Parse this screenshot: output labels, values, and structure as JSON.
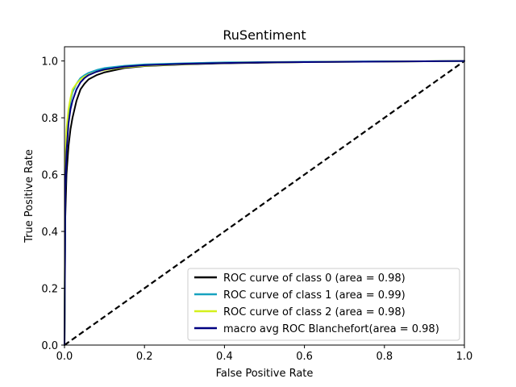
{
  "chart_data": {
    "type": "line",
    "title": "RuSentiment",
    "xlabel": "False Positive Rate",
    "ylabel": "True Positive Rate",
    "xlim": [
      0.0,
      1.0
    ],
    "ylim": [
      0.0,
      1.05
    ],
    "xticks": [
      "0.0",
      "0.2",
      "0.4",
      "0.6",
      "0.8",
      "1.0"
    ],
    "yticks": [
      "0.0",
      "0.2",
      "0.4",
      "0.6",
      "0.8",
      "1.0"
    ],
    "grid": false,
    "legend_position": "lower-right",
    "series": [
      {
        "name": "ROC curve of class 0 (area = 0.98)",
        "color": "#000000",
        "x": [
          0.0,
          0.002,
          0.005,
          0.01,
          0.015,
          0.02,
          0.03,
          0.04,
          0.05,
          0.06,
          0.08,
          0.1,
          0.15,
          0.2,
          0.3,
          0.4,
          0.5,
          0.6,
          0.7,
          0.8,
          0.9,
          1.0
        ],
        "y": [
          0.0,
          0.45,
          0.6,
          0.7,
          0.76,
          0.8,
          0.86,
          0.9,
          0.92,
          0.935,
          0.95,
          0.96,
          0.975,
          0.982,
          0.988,
          0.992,
          0.994,
          0.996,
          0.997,
          0.998,
          0.999,
          1.0
        ]
      },
      {
        "name": "ROC curve of class 1 (area = 0.99)",
        "color": "#17a2bf",
        "x": [
          0.0,
          0.002,
          0.005,
          0.01,
          0.015,
          0.02,
          0.03,
          0.04,
          0.05,
          0.06,
          0.08,
          0.1,
          0.15,
          0.2,
          0.3,
          0.4,
          0.5,
          0.6,
          0.7,
          0.8,
          0.9,
          1.0
        ],
        "y": [
          0.0,
          0.55,
          0.7,
          0.8,
          0.86,
          0.89,
          0.92,
          0.94,
          0.95,
          0.958,
          0.968,
          0.975,
          0.983,
          0.988,
          0.992,
          0.995,
          0.996,
          0.997,
          0.998,
          0.999,
          0.999,
          1.0
        ]
      },
      {
        "name": "ROC curve of class 2 (area = 0.98)",
        "color": "#d4f01c",
        "x": [
          0.0,
          0.002,
          0.005,
          0.01,
          0.015,
          0.02,
          0.03,
          0.04,
          0.05,
          0.06,
          0.08,
          0.1,
          0.15,
          0.2,
          0.3,
          0.4,
          0.5,
          0.6,
          0.7,
          0.8,
          0.9,
          1.0
        ],
        "y": [
          0.0,
          0.65,
          0.76,
          0.83,
          0.87,
          0.9,
          0.92,
          0.935,
          0.945,
          0.952,
          0.962,
          0.968,
          0.978,
          0.983,
          0.989,
          0.993,
          0.995,
          0.996,
          0.997,
          0.998,
          0.999,
          1.0
        ]
      },
      {
        "name": "macro avg ROC Blanchefort(area = 0.98)",
        "color": "#000080",
        "x": [
          0.0,
          0.002,
          0.005,
          0.01,
          0.015,
          0.02,
          0.03,
          0.04,
          0.05,
          0.06,
          0.08,
          0.1,
          0.15,
          0.2,
          0.3,
          0.4,
          0.5,
          0.6,
          0.7,
          0.8,
          0.9,
          1.0
        ],
        "y": [
          0.0,
          0.55,
          0.68,
          0.78,
          0.83,
          0.86,
          0.9,
          0.925,
          0.94,
          0.95,
          0.962,
          0.97,
          0.98,
          0.985,
          0.99,
          0.993,
          0.995,
          0.996,
          0.997,
          0.998,
          0.999,
          1.0
        ]
      }
    ],
    "reference_line": {
      "x": [
        0.0,
        1.0
      ],
      "y": [
        0.0,
        1.0
      ],
      "color": "#000000",
      "style": "dashed"
    }
  }
}
